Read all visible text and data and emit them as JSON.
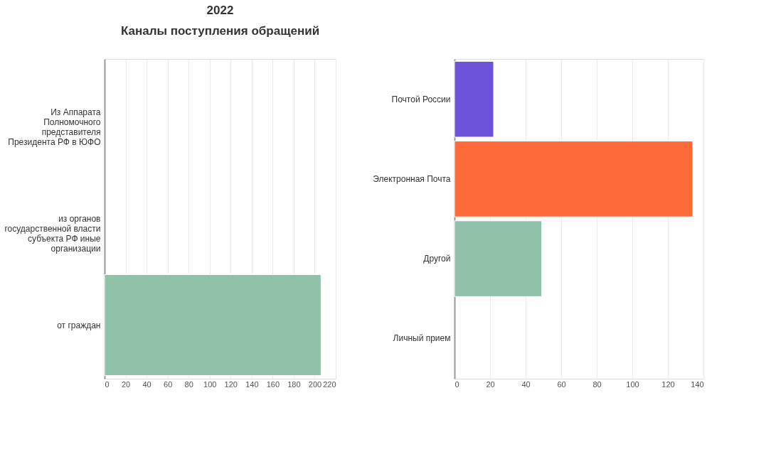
{
  "chart_data": [
    {
      "type": "bar",
      "orientation": "horizontal",
      "title": "2022",
      "subtitle": "Каналы поступления обращений",
      "categories": [
        "Из Аппарата Полномочного представителя Президента РФ в ЮФО",
        "из органов государственной власти субъекта РФ иные организации",
        "от граждан"
      ],
      "values": [
        null,
        null,
        206
      ],
      "colors": [
        "#8fc2a8",
        "#8fc2a8",
        "#8fc2a8"
      ],
      "xlim": [
        0,
        220
      ],
      "xticks": [
        0,
        20,
        40,
        60,
        80,
        100,
        120,
        140,
        160,
        180,
        200,
        220
      ],
      "grid": "x"
    },
    {
      "type": "bar",
      "orientation": "horizontal",
      "categories": [
        "Почтой России",
        "Электронная Почта",
        "Другой",
        "Личный прием"
      ],
      "values": [
        22,
        134,
        49,
        null
      ],
      "colors": [
        "#6c52d9",
        "#fe6a39",
        "#8fc2a8",
        "#8fc2a8"
      ],
      "xlim": [
        0,
        140
      ],
      "xticks": [
        0,
        20,
        40,
        60,
        80,
        100,
        120,
        140
      ],
      "grid": "x"
    }
  ]
}
